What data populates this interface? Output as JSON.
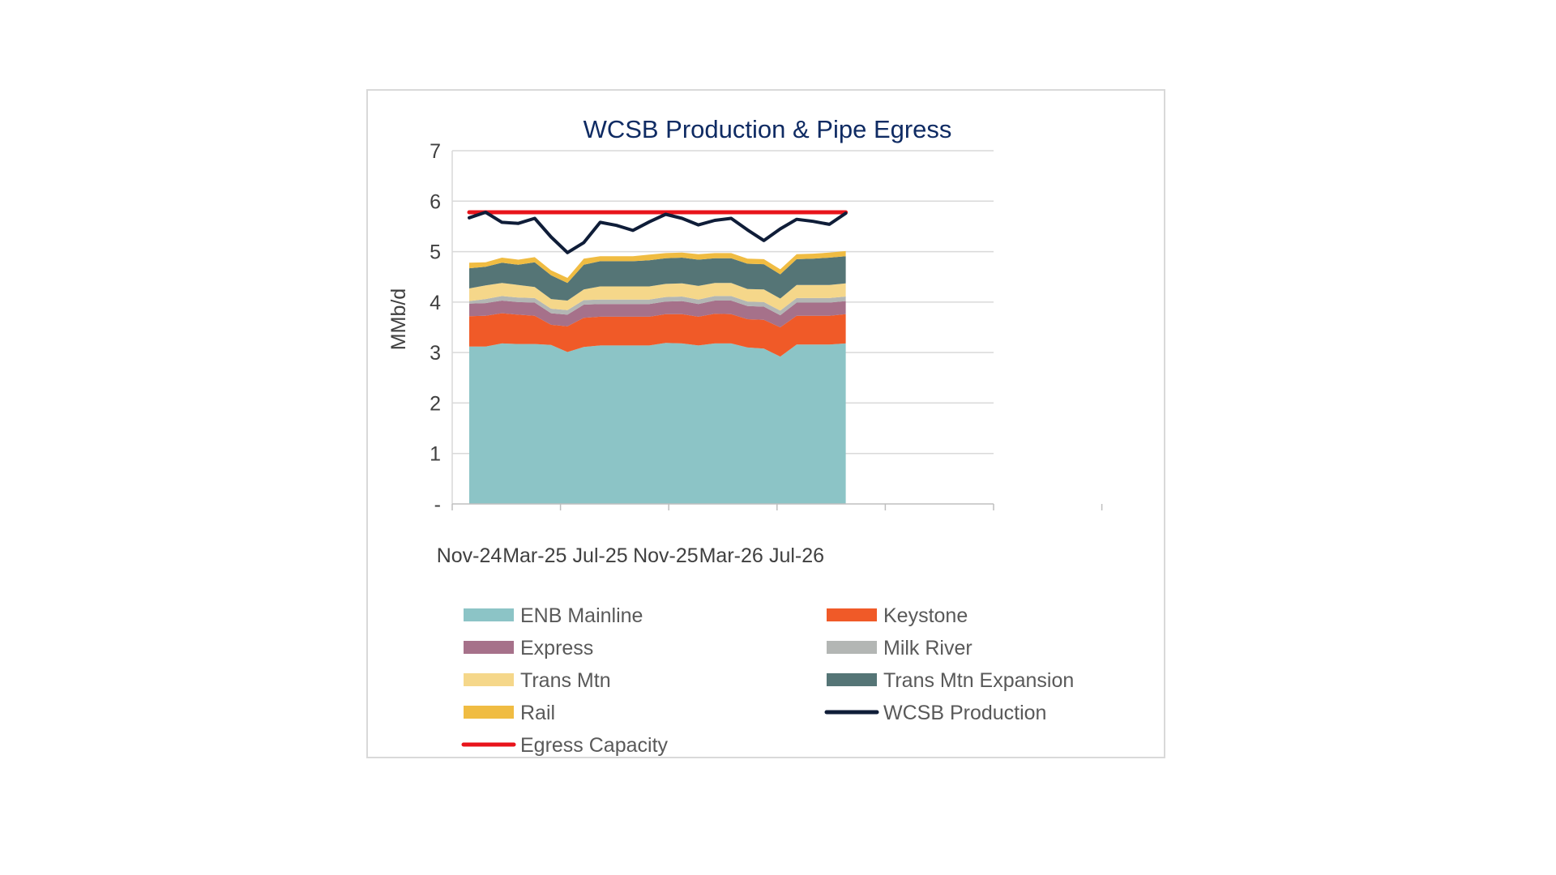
{
  "chart_data": {
    "type": "area",
    "title": "WCSB Production & Pipe Egress",
    "xlabel": "",
    "ylabel": "MMb/d",
    "ylim": [
      0,
      7
    ],
    "yticks": [
      0,
      1,
      2,
      3,
      4,
      5,
      6,
      7
    ],
    "ytick_labels": [
      "-",
      "1",
      "2",
      "3",
      "4",
      "5",
      "6",
      "7"
    ],
    "x": [
      "Nov-24",
      "Dec-24",
      "Jan-25",
      "Feb-25",
      "Mar-25",
      "Apr-25",
      "May-25",
      "Jun-25",
      "Jul-25",
      "Aug-25",
      "Sep-25",
      "Oct-25",
      "Nov-25",
      "Dec-25",
      "Jan-26",
      "Feb-26",
      "Mar-26",
      "Apr-26",
      "May-26",
      "Jun-26",
      "Jul-26",
      "Aug-26",
      "Sep-26",
      "Oct-26"
    ],
    "xtick_labels": [
      "Nov-24",
      "Mar-25",
      "Jul-25",
      "Nov-25",
      "Mar-26",
      "Jul-26"
    ],
    "stacked": true,
    "grid": true,
    "legend_position": "bottom",
    "series": [
      {
        "name": "ENB Mainline",
        "kind": "area",
        "color": "#8cc4c6",
        "values": [
          3.12,
          3.12,
          3.18,
          3.17,
          3.17,
          3.15,
          3.01,
          3.11,
          3.14,
          3.14,
          3.14,
          3.14,
          3.19,
          3.18,
          3.14,
          3.18,
          3.18,
          3.1,
          3.08,
          2.92,
          3.16,
          3.16,
          3.16,
          3.18
        ]
      },
      {
        "name": "Keystone",
        "kind": "area",
        "color": "#f05a28",
        "values": [
          0.6,
          0.61,
          0.6,
          0.58,
          0.56,
          0.4,
          0.51,
          0.58,
          0.57,
          0.57,
          0.57,
          0.57,
          0.57,
          0.58,
          0.57,
          0.59,
          0.58,
          0.56,
          0.57,
          0.58,
          0.57,
          0.57,
          0.57,
          0.58
        ]
      },
      {
        "name": "Express",
        "kind": "area",
        "color": "#a6718a",
        "values": [
          0.25,
          0.25,
          0.25,
          0.25,
          0.26,
          0.23,
          0.23,
          0.26,
          0.25,
          0.25,
          0.25,
          0.25,
          0.25,
          0.26,
          0.25,
          0.26,
          0.27,
          0.26,
          0.26,
          0.24,
          0.26,
          0.26,
          0.26,
          0.26
        ]
      },
      {
        "name": "Milk River",
        "kind": "area",
        "color": "#b3b6b4",
        "values": [
          0.05,
          0.08,
          0.09,
          0.09,
          0.09,
          0.09,
          0.09,
          0.09,
          0.09,
          0.09,
          0.09,
          0.09,
          0.09,
          0.09,
          0.09,
          0.09,
          0.09,
          0.09,
          0.09,
          0.09,
          0.09,
          0.09,
          0.09,
          0.09
        ]
      },
      {
        "name": "Trans Mtn",
        "kind": "area",
        "color": "#f5d78a",
        "values": [
          0.25,
          0.27,
          0.26,
          0.25,
          0.22,
          0.19,
          0.19,
          0.21,
          0.26,
          0.26,
          0.26,
          0.26,
          0.26,
          0.26,
          0.27,
          0.26,
          0.26,
          0.25,
          0.25,
          0.24,
          0.26,
          0.26,
          0.26,
          0.26
        ]
      },
      {
        "name": "Trans Mtn Expansion",
        "kind": "area",
        "color": "#557576",
        "values": [
          0.4,
          0.37,
          0.4,
          0.4,
          0.49,
          0.47,
          0.35,
          0.49,
          0.5,
          0.5,
          0.5,
          0.52,
          0.51,
          0.51,
          0.52,
          0.49,
          0.49,
          0.5,
          0.5,
          0.48,
          0.51,
          0.52,
          0.54,
          0.54
        ]
      },
      {
        "name": "Rail",
        "kind": "area",
        "color": "#f0bc42",
        "values": [
          0.11,
          0.09,
          0.1,
          0.1,
          0.1,
          0.1,
          0.1,
          0.12,
          0.1,
          0.1,
          0.1,
          0.11,
          0.1,
          0.1,
          0.11,
          0.1,
          0.1,
          0.1,
          0.1,
          0.1,
          0.1,
          0.1,
          0.1,
          0.1
        ]
      },
      {
        "name": "WCSB Production",
        "kind": "line",
        "color": "#0f1d38",
        "values": [
          5.67,
          5.78,
          5.58,
          5.56,
          5.66,
          5.29,
          4.98,
          5.18,
          5.58,
          5.52,
          5.42,
          5.59,
          5.74,
          5.66,
          5.53,
          5.62,
          5.66,
          5.43,
          5.22,
          5.45,
          5.64,
          5.6,
          5.54,
          5.76
        ]
      },
      {
        "name": "Egress Capacity",
        "kind": "line",
        "color": "#e8141b",
        "values": [
          5.78,
          5.78,
          5.78,
          5.78,
          5.78,
          5.78,
          5.78,
          5.78,
          5.78,
          5.78,
          5.78,
          5.78,
          5.78,
          5.78,
          5.78,
          5.78,
          5.78,
          5.78,
          5.78,
          5.78,
          5.78,
          5.78,
          5.78,
          5.78
        ]
      }
    ]
  }
}
